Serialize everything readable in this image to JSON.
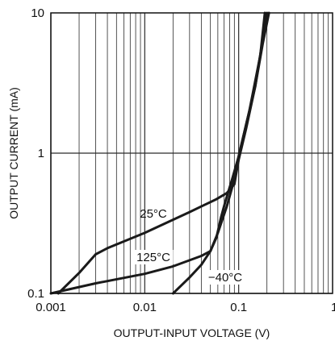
{
  "chart_data": {
    "type": "line",
    "title": "",
    "xlabel": "OUTPUT-INPUT VOLTAGE (V)",
    "ylabel": "OUTPUT CURRENT (mA)",
    "x_scale": "log",
    "y_scale": "log",
    "xlim": [
      0.001,
      1
    ],
    "ylim": [
      0.1,
      10
    ],
    "x_ticks": [
      {
        "value": 0.001,
        "label": "0.001"
      },
      {
        "value": 0.01,
        "label": "0.01"
      },
      {
        "value": 0.1,
        "label": "0.1"
      },
      {
        "value": 1,
        "label": "1"
      }
    ],
    "y_ticks": [
      {
        "value": 0.1,
        "label": "0.1"
      },
      {
        "value": 1,
        "label": "1"
      },
      {
        "value": 10,
        "label": "10"
      }
    ],
    "grid": true,
    "series": [
      {
        "name": "25°C",
        "points": [
          [
            0.0012,
            0.1
          ],
          [
            0.002,
            0.14
          ],
          [
            0.003,
            0.19
          ],
          [
            0.004,
            0.21
          ],
          [
            0.01,
            0.27
          ],
          [
            0.03,
            0.38
          ],
          [
            0.058,
            0.47
          ],
          [
            0.075,
            0.52
          ],
          [
            0.09,
            0.6
          ],
          [
            0.1,
            0.9
          ],
          [
            0.12,
            1.5
          ],
          [
            0.15,
            3.0
          ],
          [
            0.2,
            10
          ]
        ]
      },
      {
        "name": "125°C",
        "points": [
          [
            0.001,
            0.1
          ],
          [
            0.003,
            0.118
          ],
          [
            0.01,
            0.138
          ],
          [
            0.02,
            0.156
          ],
          [
            0.04,
            0.185
          ],
          [
            0.05,
            0.2
          ],
          [
            0.058,
            0.25
          ],
          [
            0.065,
            0.35
          ],
          [
            0.072,
            0.45
          ],
          [
            0.085,
            0.65
          ],
          [
            0.1,
            0.95
          ],
          [
            0.13,
            2.0
          ],
          [
            0.17,
            5.0
          ],
          [
            0.19,
            10
          ]
        ]
      },
      {
        "name": "−40°C",
        "points": [
          [
            0.02,
            0.1
          ],
          [
            0.03,
            0.13
          ],
          [
            0.04,
            0.16
          ],
          [
            0.05,
            0.2
          ],
          [
            0.06,
            0.27
          ],
          [
            0.075,
            0.42
          ],
          [
            0.09,
            0.65
          ],
          [
            0.1,
            0.95
          ],
          [
            0.12,
            1.6
          ],
          [
            0.15,
            3.0
          ],
          [
            0.18,
            6.0
          ],
          [
            0.21,
            10
          ]
        ]
      }
    ]
  },
  "colors": {
    "curve": "#1a1a1a",
    "grid": "#2a2a2a",
    "border": "#111111",
    "text": "#111111",
    "background": "#ffffff"
  }
}
